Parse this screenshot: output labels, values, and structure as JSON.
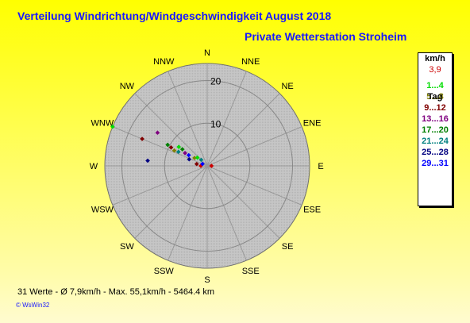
{
  "header": {
    "title": "Verteilung Windrichtung/Windgeschwindigkeit  August 2018",
    "subtitle": "Private Wetterstation Stroheim"
  },
  "footer": {
    "stats": "31 Werte   -   Ø 7,9km/h  -  Max. 55,1km/h  -   5464.4 km",
    "credit": "© WsWin32"
  },
  "legend": {
    "unit": "km/h",
    "calm": {
      "label": "3,9",
      "color": "#cc0000"
    },
    "classes": [
      {
        "label": "1...4",
        "color": "#00dd00"
      },
      {
        "label": "5...8",
        "color": "#808000"
      },
      {
        "label": "9...12",
        "color": "#800000"
      },
      {
        "label": "13...16",
        "color": "#800080"
      },
      {
        "label": "17...20",
        "color": "#008000"
      },
      {
        "label": "21...24",
        "color": "#008080"
      },
      {
        "label": "25...28",
        "color": "#000080"
      },
      {
        "label": "29...31",
        "color": "#0000ff"
      }
    ],
    "footer": "Tag"
  },
  "chart_data": {
    "type": "scatter",
    "coordinate_system": "polar",
    "directions": [
      "N",
      "NNE",
      "NE",
      "ENE",
      "E",
      "ESE",
      "SE",
      "SSE",
      "S",
      "SSW",
      "SW",
      "WSW",
      "W",
      "WNW",
      "NW",
      "NNW"
    ],
    "r_ticks": [
      10,
      20
    ],
    "r_max": 24,
    "points": [
      {
        "direction": 292.5,
        "r": 24.0,
        "color": "#00dd00"
      },
      {
        "direction": 303.75,
        "r": 14.0,
        "color": "#800080"
      },
      {
        "direction": 292.5,
        "r": 16.5,
        "color": "#800000"
      },
      {
        "direction": 303.75,
        "r": 8.0,
        "color": "#00dd00"
      },
      {
        "direction": 303.75,
        "r": 7.0,
        "color": "#008000"
      },
      {
        "direction": 298.0,
        "r": 10.5,
        "color": "#008000"
      },
      {
        "direction": 297.0,
        "r": 9.5,
        "color": "#800000"
      },
      {
        "direction": 295.0,
        "r": 8.5,
        "color": "#808000"
      },
      {
        "direction": 296.0,
        "r": 7.5,
        "color": "#008080"
      },
      {
        "direction": 300.0,
        "r": 6.0,
        "color": "#800080"
      },
      {
        "direction": 300.0,
        "r": 5.0,
        "color": "#0000ff"
      },
      {
        "direction": 290.0,
        "r": 4.5,
        "color": "#000080"
      },
      {
        "direction": 302.0,
        "r": 3.5,
        "color": "#808000"
      },
      {
        "direction": 310.0,
        "r": 3.0,
        "color": "#00dd00"
      },
      {
        "direction": 275.0,
        "r": 14.0,
        "color": "#000080"
      },
      {
        "direction": 280.0,
        "r": 2.5,
        "color": "#800000"
      },
      {
        "direction": 315.0,
        "r": 2.0,
        "color": "#008080"
      },
      {
        "direction": 270.0,
        "r": 1.5,
        "color": "#cc0000"
      },
      {
        "direction": 292.5,
        "r": 1.2,
        "color": "#0000ff"
      },
      {
        "direction": 90.0,
        "r": 1.0,
        "color": "#cc0000"
      }
    ]
  }
}
